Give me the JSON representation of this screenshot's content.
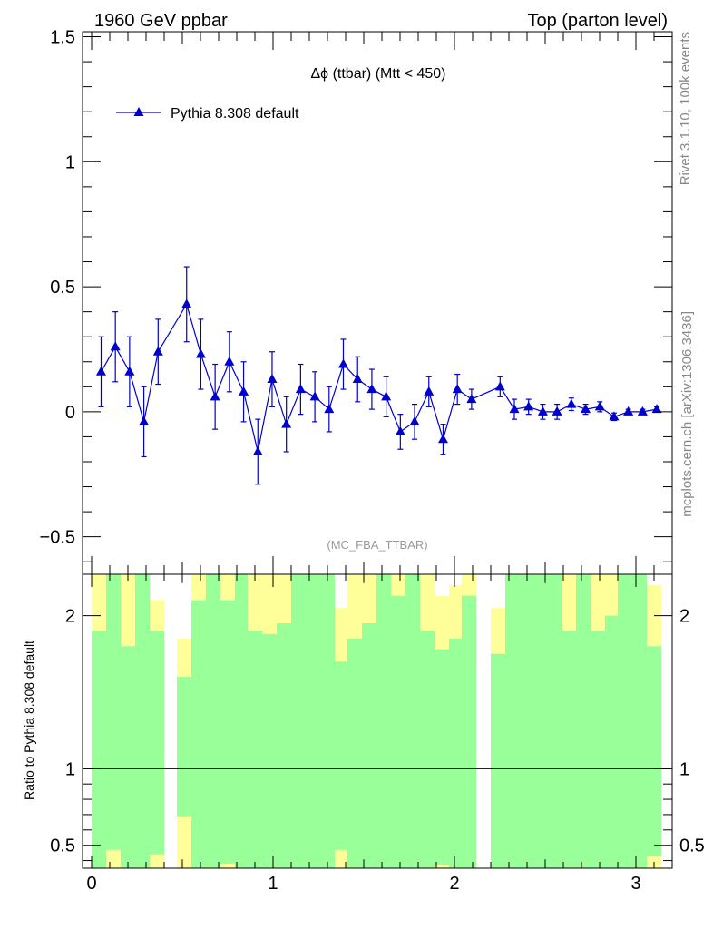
{
  "header": {
    "left": "1960 GeV ppbar",
    "right": "Top (parton level)"
  },
  "side": {
    "rivet": "Rivet 3.1.10,  100k events",
    "mcplots": "mcplots.cern.ch [arXiv:1306.3436]"
  },
  "colors": {
    "series": "#0000cc",
    "band_inner": "#99ff99",
    "band_outer": "#ffff99",
    "axis": "#000000",
    "watermark": "#999999",
    "side_text": "#888888"
  },
  "chart_data": [
    {
      "type": "line",
      "title": "Δϕ (ttbar) (Mtt < 450)",
      "watermark": "(MC_FBA_TTBAR)",
      "xlim": [
        -0.05,
        3.2
      ],
      "ylim": [
        -0.65,
        1.52
      ],
      "yticks": [
        -0.5,
        0,
        0.5,
        1,
        1.5
      ],
      "ytick_labels": [
        "−0.5",
        "0",
        "0.5",
        "1",
        "1.5"
      ],
      "legend_position": "top-left",
      "series": [
        {
          "name": "Pythia 8.308 default",
          "marker": "triangle",
          "x": [
            0.0524,
            0.1309,
            0.2094,
            0.288,
            0.3665,
            0.5236,
            0.6021,
            0.6807,
            0.7592,
            0.8378,
            0.9163,
            0.9948,
            1.0734,
            1.1519,
            1.2305,
            1.309,
            1.3875,
            1.4661,
            1.5446,
            1.6232,
            1.7017,
            1.7802,
            1.8588,
            1.9373,
            2.0159,
            2.0944,
            2.2515,
            2.33,
            2.4086,
            2.4871,
            2.5656,
            2.6442,
            2.7227,
            2.8013,
            2.8798,
            2.9583,
            3.0369,
            3.1154
          ],
          "y": [
            0.16,
            0.26,
            0.16,
            -0.04,
            0.24,
            0.43,
            0.23,
            0.06,
            0.2,
            0.08,
            -0.16,
            0.13,
            -0.05,
            0.09,
            0.06,
            0.01,
            0.19,
            0.13,
            0.09,
            0.06,
            -0.08,
            -0.04,
            0.08,
            -0.11,
            0.09,
            0.05,
            0.1,
            0.01,
            0.02,
            0.0,
            0.0,
            0.03,
            0.01,
            0.02,
            -0.02,
            0.0,
            0.0,
            0.01
          ],
          "yerr": [
            0.14,
            0.14,
            0.14,
            0.14,
            0.13,
            0.15,
            0.14,
            0.13,
            0.12,
            0.12,
            0.13,
            0.11,
            0.11,
            0.1,
            0.1,
            0.09,
            0.1,
            0.09,
            0.08,
            0.08,
            0.07,
            0.07,
            0.06,
            0.06,
            0.06,
            0.04,
            0.04,
            0.04,
            0.03,
            0.03,
            0.03,
            0.025,
            0.02,
            0.02,
            0.015,
            0.01,
            0.01,
            0.01
          ]
        }
      ]
    },
    {
      "type": "area",
      "ylabel": "Ratio to Pythia 8.308 default",
      "xlim": [
        -0.05,
        3.2
      ],
      "ylim": [
        0.35,
        2.27
      ],
      "xticks": [
        0,
        1,
        2,
        3
      ],
      "xtick_labels": [
        "0",
        "1",
        "2",
        "3"
      ],
      "yticks": [
        0.5,
        1,
        2
      ],
      "ytick_labels": [
        "0.5",
        "1",
        "2"
      ],
      "reference_line": 1,
      "bins": [
        {
          "x0": 0.0,
          "x1": 0.08,
          "inner": [
            0.35,
            1.9
          ],
          "outer": [
            0.35,
            2.27
          ]
        },
        {
          "x0": 0.08,
          "x1": 0.16,
          "inner": [
            0.47,
            2.27
          ],
          "outer": [
            0.35,
            2.27
          ]
        },
        {
          "x0": 0.16,
          "x1": 0.24,
          "inner": [
            0.35,
            1.8
          ],
          "outer": [
            0.35,
            2.27
          ]
        },
        {
          "x0": 0.24,
          "x1": 0.32,
          "inner": [
            0.35,
            2.27
          ],
          "outer": [
            0.35,
            2.27
          ]
        },
        {
          "x0": 0.32,
          "x1": 0.4,
          "inner": [
            0.44,
            1.9
          ],
          "outer": [
            0.35,
            2.1
          ]
        },
        {
          "x0": 0.47,
          "x1": 0.55,
          "inner": [
            0.69,
            1.6
          ],
          "outer": [
            0.35,
            1.85
          ]
        },
        {
          "x0": 0.55,
          "x1": 0.63,
          "inner": [
            0.35,
            2.1
          ],
          "outer": [
            0.35,
            2.27
          ]
        },
        {
          "x0": 0.63,
          "x1": 0.71,
          "inner": [
            0.35,
            2.27
          ],
          "outer": [
            0.35,
            2.27
          ]
        },
        {
          "x0": 0.71,
          "x1": 0.79,
          "inner": [
            0.38,
            2.1
          ],
          "outer": [
            0.35,
            2.27
          ]
        },
        {
          "x0": 0.79,
          "x1": 0.86,
          "inner": [
            0.35,
            2.27
          ],
          "outer": [
            0.35,
            2.27
          ]
        },
        {
          "x0": 0.86,
          "x1": 0.94,
          "inner": [
            0.35,
            1.9
          ],
          "outer": [
            0.35,
            2.27
          ]
        },
        {
          "x0": 0.94,
          "x1": 1.02,
          "inner": [
            0.35,
            1.88
          ],
          "outer": [
            0.35,
            2.27
          ]
        },
        {
          "x0": 1.02,
          "x1": 1.1,
          "inner": [
            0.35,
            1.95
          ],
          "outer": [
            0.35,
            2.27
          ]
        },
        {
          "x0": 1.1,
          "x1": 1.18,
          "inner": [
            0.35,
            2.27
          ],
          "outer": [
            0.35,
            2.27
          ]
        },
        {
          "x0": 1.18,
          "x1": 1.26,
          "inner": [
            0.35,
            2.27
          ],
          "outer": [
            0.35,
            2.27
          ]
        },
        {
          "x0": 1.26,
          "x1": 1.34,
          "inner": [
            0.35,
            2.27
          ],
          "outer": [
            0.35,
            2.27
          ]
        },
        {
          "x0": 1.34,
          "x1": 1.41,
          "inner": [
            0.47,
            1.7
          ],
          "outer": [
            0.35,
            2.05
          ]
        },
        {
          "x0": 1.41,
          "x1": 1.49,
          "inner": [
            0.35,
            1.85
          ],
          "outer": [
            0.35,
            2.27
          ]
        },
        {
          "x0": 1.49,
          "x1": 1.57,
          "inner": [
            0.35,
            1.95
          ],
          "outer": [
            0.35,
            2.27
          ]
        },
        {
          "x0": 1.57,
          "x1": 1.65,
          "inner": [
            0.35,
            2.27
          ],
          "outer": [
            0.35,
            2.27
          ]
        },
        {
          "x0": 1.65,
          "x1": 1.73,
          "inner": [
            0.35,
            2.13
          ],
          "outer": [
            0.35,
            2.27
          ]
        },
        {
          "x0": 1.73,
          "x1": 1.81,
          "inner": [
            0.35,
            2.27
          ],
          "outer": [
            0.35,
            2.27
          ]
        },
        {
          "x0": 1.81,
          "x1": 1.89,
          "inner": [
            0.35,
            1.9
          ],
          "outer": [
            0.35,
            2.27
          ]
        },
        {
          "x0": 1.89,
          "x1": 1.97,
          "inner": [
            0.37,
            1.78
          ],
          "outer": [
            0.35,
            2.13
          ]
        },
        {
          "x0": 1.97,
          "x1": 2.04,
          "inner": [
            0.35,
            1.85
          ],
          "outer": [
            0.35,
            2.2
          ]
        },
        {
          "x0": 2.04,
          "x1": 2.12,
          "inner": [
            0.35,
            2.13
          ],
          "outer": [
            0.35,
            2.27
          ]
        },
        {
          "x0": 2.2,
          "x1": 2.28,
          "inner": [
            0.35,
            1.75
          ],
          "outer": [
            0.35,
            2.05
          ]
        },
        {
          "x0": 2.28,
          "x1": 2.36,
          "inner": [
            0.35,
            2.27
          ],
          "outer": [
            0.35,
            2.27
          ]
        },
        {
          "x0": 2.36,
          "x1": 2.43,
          "inner": [
            0.35,
            2.27
          ],
          "outer": [
            0.35,
            2.27
          ]
        },
        {
          "x0": 2.43,
          "x1": 2.51,
          "inner": [
            0.35,
            2.27
          ],
          "outer": [
            0.35,
            2.27
          ]
        },
        {
          "x0": 2.51,
          "x1": 2.59,
          "inner": [
            0.35,
            2.27
          ],
          "outer": [
            0.35,
            2.27
          ]
        },
        {
          "x0": 2.59,
          "x1": 2.67,
          "inner": [
            0.35,
            1.9
          ],
          "outer": [
            0.35,
            2.27
          ]
        },
        {
          "x0": 2.67,
          "x1": 2.75,
          "inner": [
            0.35,
            2.27
          ],
          "outer": [
            0.35,
            2.27
          ]
        },
        {
          "x0": 2.75,
          "x1": 2.83,
          "inner": [
            0.35,
            1.9
          ],
          "outer": [
            0.35,
            2.27
          ]
        },
        {
          "x0": 2.83,
          "x1": 2.9,
          "inner": [
            0.35,
            2.0
          ],
          "outer": [
            0.35,
            2.27
          ]
        },
        {
          "x0": 2.9,
          "x1": 2.98,
          "inner": [
            0.35,
            2.27
          ],
          "outer": [
            0.35,
            2.27
          ]
        },
        {
          "x0": 2.98,
          "x1": 3.06,
          "inner": [
            0.35,
            2.27
          ],
          "outer": [
            0.35,
            2.27
          ]
        },
        {
          "x0": 3.06,
          "x1": 3.14,
          "inner": [
            0.43,
            1.8
          ],
          "outer": [
            0.35,
            2.2
          ]
        }
      ]
    }
  ]
}
